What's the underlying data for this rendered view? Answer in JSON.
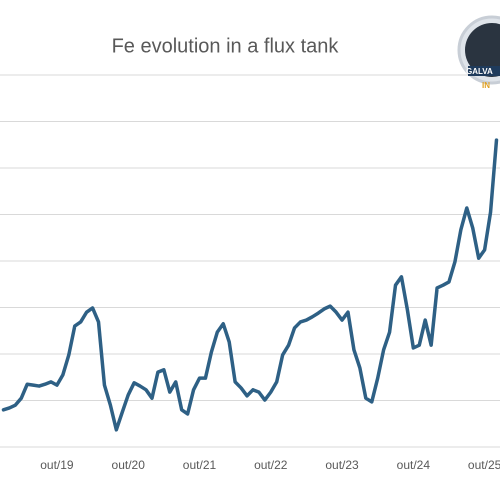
{
  "chart_data": {
    "type": "line",
    "title": "Fe evolution in a flux tank",
    "categories": [
      null,
      null,
      null,
      null,
      null,
      null,
      null,
      null,
      null,
      "out/19",
      null,
      null,
      null,
      null,
      null,
      null,
      null,
      null,
      null,
      null,
      null,
      "out/20",
      null,
      null,
      null,
      null,
      null,
      null,
      null,
      null,
      null,
      null,
      null,
      "out/21",
      null,
      null,
      null,
      null,
      null,
      null,
      null,
      null,
      null,
      null,
      null,
      "out/22",
      null,
      null,
      null,
      null,
      null,
      null,
      null,
      null,
      null,
      null,
      null,
      "out/23",
      null,
      null,
      null,
      null,
      null,
      null,
      null,
      null,
      null,
      null,
      null,
      "out/24",
      null,
      null,
      null,
      null,
      null,
      null,
      null,
      null,
      null,
      null,
      null,
      "out/25",
      null,
      null
    ],
    "series": [
      {
        "color": "#2e6085",
        "values": [
          0.8,
          0.84,
          0.9,
          1.05,
          1.35,
          1.33,
          1.31,
          1.35,
          1.4,
          1.33,
          1.55,
          1.98,
          2.6,
          2.69,
          2.9,
          2.99,
          2.69,
          1.33,
          0.9,
          0.37,
          0.75,
          1.12,
          1.38,
          1.31,
          1.23,
          1.05,
          1.61,
          1.66,
          1.18,
          1.4,
          0.8,
          0.71,
          1.23,
          1.48,
          1.48,
          2.04,
          2.47,
          2.65,
          2.26,
          1.4,
          1.27,
          1.1,
          1.23,
          1.18,
          1.01,
          1.18,
          1.4,
          1.98,
          2.19,
          2.56,
          2.69,
          2.73,
          2.8,
          2.88,
          2.97,
          3.03,
          2.9,
          2.73,
          2.9,
          2.09,
          1.7,
          1.05,
          0.97,
          1.48,
          2.09,
          2.47,
          3.48,
          3.66,
          2.95,
          2.13,
          2.19,
          2.73,
          2.19,
          3.42,
          3.48,
          3.55,
          3.98,
          4.67,
          5.14,
          4.71,
          4.06,
          4.24,
          5.05,
          6.6
        ]
      }
    ],
    "ylim": [
      0,
      8
    ],
    "yticks": [
      0,
      1,
      2,
      3,
      4,
      5,
      6,
      7,
      8
    ],
    "grid": true,
    "logo": {
      "line1": "GALVA",
      "line2": "IN"
    }
  }
}
